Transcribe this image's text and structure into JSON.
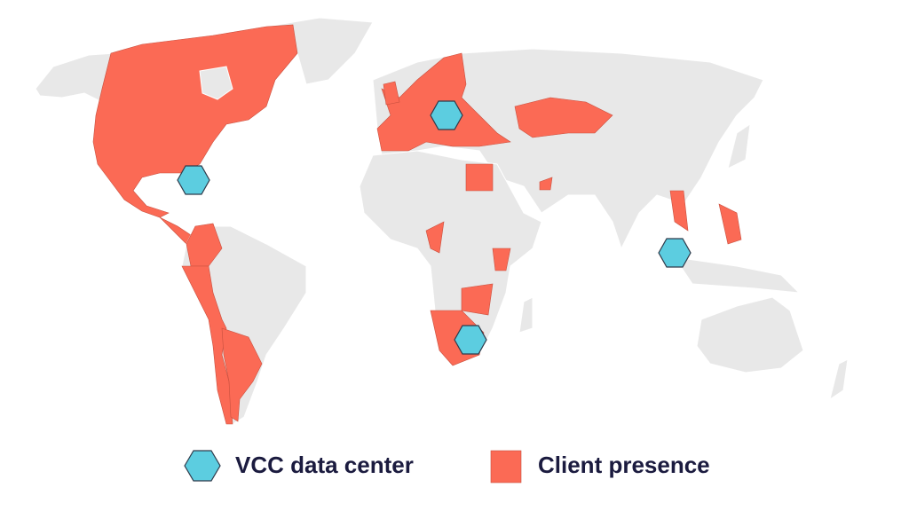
{
  "legend": {
    "items": [
      {
        "label": "VCC data center"
      },
      {
        "label": "Client presence"
      }
    ]
  }
}
